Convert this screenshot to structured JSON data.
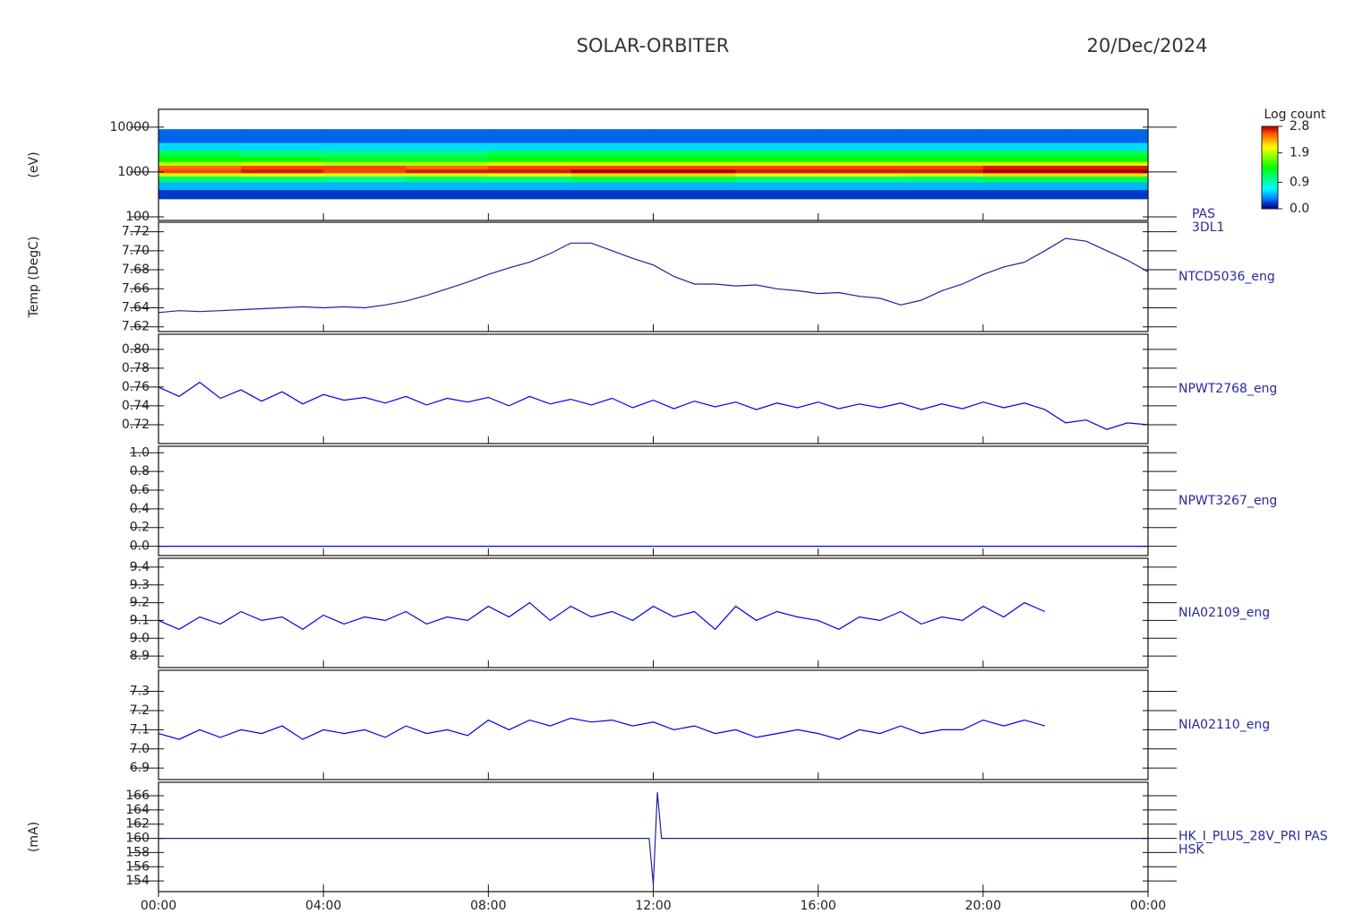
{
  "title": "SOLAR-ORBITER",
  "date": "20/Dec/2024",
  "chart_data": [
    {
      "type": "heatmap",
      "log": true,
      "y_label": "(eV)",
      "labels": [
        "PAS",
        "3DL1"
      ],
      "xlim": [
        0,
        24
      ],
      "ylim": [
        83,
        25000
      ],
      "yticks": [
        100,
        1000,
        10000
      ],
      "x_edges": [
        0,
        2,
        4,
        6,
        8,
        10,
        12,
        14,
        16,
        18,
        20,
        22,
        24
      ],
      "y_edges": [
        250,
        400,
        600,
        800,
        950,
        1150,
        1400,
        1700,
        2200,
        3000,
        4500,
        9000
      ],
      "values": [
        [
          0.2,
          0.5,
          1.1,
          2.0,
          2.6,
          2.5,
          1.9,
          1.4,
          1.2,
          0.6,
          0.3
        ],
        [
          0.2,
          0.5,
          1.1,
          2.1,
          2.7,
          2.6,
          2.0,
          1.4,
          1.1,
          0.6,
          0.3
        ],
        [
          0.2,
          0.5,
          1.0,
          2.0,
          2.6,
          2.6,
          1.9,
          1.3,
          1.1,
          0.6,
          0.3
        ],
        [
          0.2,
          0.5,
          1.1,
          2.0,
          2.7,
          2.5,
          1.9,
          1.3,
          1.1,
          0.6,
          0.3
        ],
        [
          0.2,
          0.5,
          1.1,
          2.1,
          2.7,
          2.6,
          2.0,
          1.4,
          1.2,
          0.6,
          0.3
        ],
        [
          0.2,
          0.5,
          1.2,
          2.2,
          2.8,
          2.6,
          2.0,
          1.4,
          1.2,
          0.6,
          0.3
        ],
        [
          0.2,
          0.5,
          1.2,
          2.2,
          2.8,
          2.6,
          2.0,
          1.4,
          1.2,
          0.6,
          0.3
        ],
        [
          0.2,
          0.5,
          1.1,
          2.1,
          2.7,
          2.6,
          2.0,
          1.4,
          1.2,
          0.6,
          0.3
        ],
        [
          0.2,
          0.5,
          1.1,
          2.1,
          2.7,
          2.6,
          2.0,
          1.4,
          1.2,
          0.6,
          0.3
        ],
        [
          0.2,
          0.5,
          1.1,
          2.0,
          2.7,
          2.6,
          2.0,
          1.4,
          1.2,
          0.6,
          0.3
        ],
        [
          0.2,
          0.5,
          1.2,
          2.2,
          2.8,
          2.7,
          2.0,
          1.4,
          1.2,
          0.6,
          0.3
        ],
        [
          0.2,
          0.5,
          1.2,
          2.2,
          2.8,
          2.7,
          2.0,
          1.4,
          1.2,
          0.6,
          0.3
        ]
      ],
      "colorbar": {
        "title": "Log count",
        "lim": [
          0,
          2.8
        ],
        "ticks": [
          {
            "value": 0,
            "label": "0.0"
          },
          {
            "value": 0.9,
            "label": "0.9"
          },
          {
            "value": 1.9,
            "label": "1.9"
          },
          {
            "value": 2.8,
            "label": "2.8"
          }
        ]
      }
    },
    {
      "type": "line",
      "y_label": "Temp (DegC)",
      "labels": [
        "NTCD5036_eng"
      ],
      "color": "#2020a0",
      "xlim": [
        0,
        24
      ],
      "ylim": [
        7.615,
        7.73
      ],
      "yticks": [
        7.62,
        7.64,
        7.66,
        7.68,
        {
          "value": 7.7,
          "label": "7.70"
        },
        7.72
      ],
      "x": [
        0,
        0.5,
        1,
        1.5,
        2,
        2.5,
        3,
        3.5,
        4,
        4.5,
        5,
        5.5,
        6,
        6.5,
        7,
        7.5,
        8,
        8.5,
        9,
        9.5,
        10,
        10.5,
        11,
        11.5,
        12,
        12.5,
        13,
        13.5,
        14,
        14.5,
        15,
        15.5,
        16,
        16.5,
        17,
        17.5,
        18,
        18.5,
        19,
        19.5,
        20,
        20.5,
        21,
        21.5,
        22,
        22.5,
        23,
        23.5,
        24
      ],
      "values": [
        7.635,
        7.637,
        7.636,
        7.637,
        7.638,
        7.639,
        7.64,
        7.641,
        7.64,
        7.641,
        7.64,
        7.643,
        7.647,
        7.653,
        7.66,
        7.667,
        7.675,
        7.682,
        7.688,
        7.697,
        7.708,
        7.708,
        7.7,
        7.692,
        7.685,
        7.673,
        7.665,
        7.665,
        7.663,
        7.664,
        7.66,
        7.658,
        7.655,
        7.656,
        7.652,
        7.65,
        7.643,
        7.648,
        7.658,
        7.665,
        7.675,
        7.683,
        7.688,
        7.7,
        7.713,
        7.71,
        7.7,
        7.69,
        7.678
      ]
    },
    {
      "type": "line",
      "labels": [
        "NPWT2768_eng"
      ],
      "color": "#0000ee",
      "xlim": [
        0,
        24
      ],
      "ylim": [
        0.7,
        0.816
      ],
      "yticks": [
        0.72,
        0.74,
        0.76,
        0.78,
        {
          "value": 0.8,
          "label": "0.80"
        }
      ],
      "x": [
        0,
        0.5,
        1,
        1.5,
        2,
        2.5,
        3,
        3.5,
        4,
        4.5,
        5,
        5.5,
        6,
        6.5,
        7,
        7.5,
        8,
        8.5,
        9,
        9.5,
        10,
        10.5,
        11,
        11.5,
        12,
        12.5,
        13,
        13.5,
        14,
        14.5,
        15,
        15.5,
        16,
        16.5,
        17,
        17.5,
        18,
        18.5,
        19,
        19.5,
        20,
        20.5,
        21,
        21.5,
        22,
        22.5,
        23,
        23.5,
        24
      ],
      "values": [
        0.76,
        0.75,
        0.765,
        0.748,
        0.757,
        0.745,
        0.755,
        0.742,
        0.752,
        0.746,
        0.749,
        0.743,
        0.75,
        0.741,
        0.748,
        0.744,
        0.749,
        0.74,
        0.75,
        0.742,
        0.747,
        0.741,
        0.748,
        0.738,
        0.746,
        0.737,
        0.745,
        0.739,
        0.744,
        0.736,
        0.743,
        0.738,
        0.744,
        0.737,
        0.742,
        0.738,
        0.743,
        0.736,
        0.742,
        0.737,
        0.744,
        0.738,
        0.743,
        0.736,
        0.722,
        0.725,
        0.715,
        0.722,
        0.72
      ]
    },
    {
      "type": "line",
      "labels": [
        "NPWT3267_eng"
      ],
      "color": "#0000ff",
      "xlim": [
        0,
        24
      ],
      "ylim": [
        -0.1,
        1.07
      ],
      "yticks": [
        {
          "value": 0,
          "label": "0.0"
        },
        0.2,
        0.4,
        0.6,
        0.8,
        {
          "value": 1,
          "label": "1.0"
        }
      ],
      "x": [
        0,
        0.5,
        1,
        1.5,
        2,
        2.5,
        3,
        3.5,
        4,
        4.5,
        5,
        5.5,
        6,
        6.5,
        7,
        7.5,
        8,
        8.5,
        9,
        9.5,
        10,
        10.5,
        11,
        11.5,
        12,
        12.5,
        13,
        13.5,
        14,
        14.5,
        15,
        15.5,
        16,
        16.5,
        17,
        17.5,
        18,
        18.5,
        19,
        19.5,
        20,
        20.5,
        21,
        21.5,
        22,
        22.5,
        23,
        23.5,
        24
      ],
      "values": [
        0,
        0,
        0,
        0,
        0,
        0,
        0,
        0,
        0,
        0,
        0,
        0,
        0,
        0,
        0,
        0,
        0,
        0,
        0,
        0,
        0,
        0,
        0,
        0,
        0,
        0,
        0,
        0,
        0,
        0,
        0,
        0,
        0,
        0,
        0,
        0,
        0,
        0,
        0,
        0,
        0,
        0,
        0,
        0,
        0,
        0,
        0,
        0,
        0
      ]
    },
    {
      "type": "line",
      "labels": [
        "NIA02109_eng"
      ],
      "color": "#0000ee",
      "xlim": [
        0,
        24
      ],
      "ylim": [
        8.835,
        9.45
      ],
      "yticks": [
        8.9,
        {
          "value": 9,
          "label": "9.0"
        },
        9.1,
        9.2,
        9.3,
        9.4
      ],
      "x": [
        0,
        0.5,
        1,
        1.5,
        2,
        2.5,
        3,
        3.5,
        4,
        4.5,
        5,
        5.5,
        6,
        6.5,
        7,
        7.5,
        8,
        8.5,
        9,
        9.5,
        10,
        10.5,
        11,
        11.5,
        12,
        12.5,
        13,
        13.5,
        14,
        14.5,
        15,
        15.5,
        16,
        16.5,
        17,
        17.5,
        18,
        18.5,
        19,
        19.5,
        20,
        20.5,
        21,
        21.5,
        22,
        22.5,
        23,
        23.5,
        24
      ],
      "values": [
        9.1,
        9.05,
        9.12,
        9.08,
        9.15,
        9.1,
        9.12,
        9.05,
        9.13,
        9.08,
        9.12,
        9.1,
        9.15,
        9.08,
        9.12,
        9.1,
        9.18,
        9.12,
        9.2,
        9.1,
        9.18,
        9.12,
        9.15,
        9.1,
        9.18,
        9.12,
        9.15,
        9.05,
        9.18,
        9.1,
        9.15,
        9.12,
        9.1,
        9.05,
        9.12,
        9.1,
        9.15,
        9.08,
        9.12,
        9.1,
        9.18,
        9.12,
        9.2,
        9.15,
        null,
        null,
        null,
        null,
        null
      ]
    },
    {
      "type": "line",
      "labels": [
        "NIA02110_eng"
      ],
      "color": "#0000ee",
      "xlim": [
        0,
        24
      ],
      "ylim": [
        6.84,
        7.41
      ],
      "yticks": [
        6.9,
        {
          "value": 7,
          "label": "7.0"
        },
        7.1,
        7.2,
        7.3
      ],
      "x": [
        0,
        0.5,
        1,
        1.5,
        2,
        2.5,
        3,
        3.5,
        4,
        4.5,
        5,
        5.5,
        6,
        6.5,
        7,
        7.5,
        8,
        8.5,
        9,
        9.5,
        10,
        10.5,
        11,
        11.5,
        12,
        12.5,
        13,
        13.5,
        14,
        14.5,
        15,
        15.5,
        16,
        16.5,
        17,
        17.5,
        18,
        18.5,
        19,
        19.5,
        20,
        20.5,
        21,
        21.5,
        22,
        22.5,
        23,
        23.5,
        24
      ],
      "values": [
        7.08,
        7.05,
        7.1,
        7.06,
        7.1,
        7.08,
        7.12,
        7.05,
        7.1,
        7.08,
        7.1,
        7.06,
        7.12,
        7.08,
        7.1,
        7.07,
        7.15,
        7.1,
        7.15,
        7.12,
        7.16,
        7.14,
        7.15,
        7.12,
        7.14,
        7.1,
        7.12,
        7.08,
        7.1,
        7.06,
        7.08,
        7.1,
        7.08,
        7.05,
        7.1,
        7.08,
        7.12,
        7.08,
        7.1,
        7.1,
        7.15,
        7.12,
        7.15,
        7.12,
        null,
        null,
        null,
        null,
        null
      ]
    },
    {
      "type": "line",
      "y_label": "(mA)",
      "labels": [
        "HK_I_PLUS_28V_PRI PAS",
        "HSK"
      ],
      "color": "#2020a0",
      "xlim": [
        0,
        24
      ],
      "ylim": [
        152.5,
        167.9
      ],
      "yticks": [
        154,
        156,
        158,
        160,
        162,
        164,
        166
      ],
      "xticks": [
        {
          "value": 0,
          "label": "00:00"
        },
        {
          "value": 4,
          "label": "04:00"
        },
        {
          "value": 8,
          "label": "08:00"
        },
        {
          "value": 12,
          "label": "12:00"
        },
        {
          "value": 16,
          "label": "16:00"
        },
        {
          "value": 20,
          "label": "20:00"
        },
        {
          "value": 24,
          "label": "00:00"
        }
      ],
      "x": [
        0,
        1,
        2,
        3,
        4,
        5,
        6,
        7,
        8,
        9,
        10,
        11,
        11.9,
        12,
        12.1,
        12.2,
        13,
        14,
        15,
        16,
        17,
        18,
        19,
        20,
        21,
        22,
        23,
        24
      ],
      "values": [
        160,
        160,
        160,
        160,
        160,
        160,
        160,
        160,
        160,
        160,
        160,
        160,
        160,
        153.5,
        166.5,
        160,
        160,
        160,
        160,
        160,
        160,
        160,
        160,
        160,
        160,
        160,
        160,
        160
      ]
    }
  ]
}
